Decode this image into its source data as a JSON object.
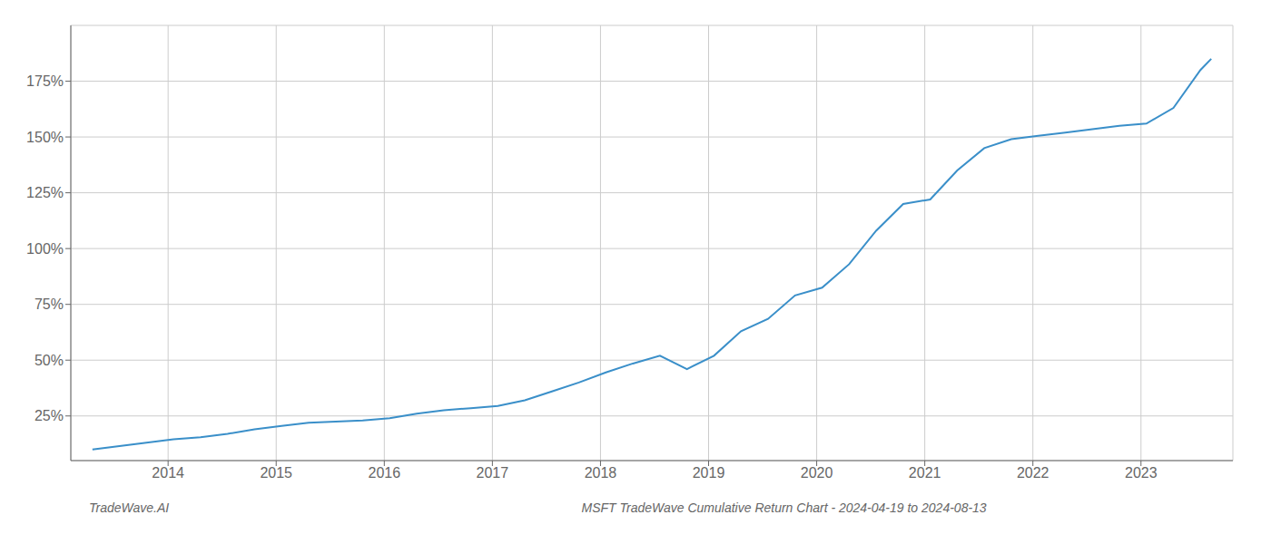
{
  "chart_data": {
    "type": "line",
    "title": "MSFT TradeWave Cumulative Return Chart - 2024-04-19 to 2024-08-13",
    "annotations": [
      "TradeWave.AI"
    ],
    "x": [
      2013.3,
      2013.55,
      2013.8,
      2014.05,
      2014.3,
      2014.55,
      2014.8,
      2015.05,
      2015.3,
      2015.55,
      2015.8,
      2016.05,
      2016.3,
      2016.55,
      2016.8,
      2017.05,
      2017.3,
      2017.55,
      2017.8,
      2018.05,
      2018.3,
      2018.55,
      2018.8,
      2019.05,
      2019.3,
      2019.55,
      2019.8,
      2020.05,
      2020.3,
      2020.55,
      2020.8,
      2021.05,
      2021.3,
      2021.55,
      2021.8,
      2022.05,
      2022.3,
      2022.55,
      2022.8,
      2023.05,
      2023.3,
      2023.55,
      2023.65
    ],
    "values": [
      10.0,
      11.5,
      13.0,
      14.5,
      15.5,
      17.0,
      19.0,
      20.5,
      22.0,
      22.5,
      23.0,
      24.0,
      26.0,
      27.5,
      28.5,
      29.5,
      32.0,
      36.0,
      40.0,
      44.5,
      48.5,
      52.0,
      46.0,
      52.0,
      63.0,
      68.5,
      79.0,
      82.5,
      93.0,
      108.0,
      120.0,
      122.0,
      135.0,
      145.0,
      149.0,
      150.5,
      152.0,
      153.5,
      155.0,
      156.0,
      163.0,
      180.0,
      185.0
    ],
    "color": "#3a8fc9",
    "xlim": [
      2013.1,
      2023.85
    ],
    "xticks": [
      2014,
      2015,
      2016,
      2017,
      2018,
      2019,
      2020,
      2021,
      2022,
      2023
    ],
    "ylim": [
      5,
      200
    ],
    "yticks": [
      {
        "value": 25,
        "label": "25%"
      },
      {
        "value": 50,
        "label": "50%"
      },
      {
        "value": 75,
        "label": "75%"
      },
      {
        "value": 100,
        "label": "100%"
      },
      {
        "value": 125,
        "label": "125%"
      },
      {
        "value": 150,
        "label": "150%"
      },
      {
        "value": 175,
        "label": "175%"
      }
    ],
    "grid": true
  }
}
